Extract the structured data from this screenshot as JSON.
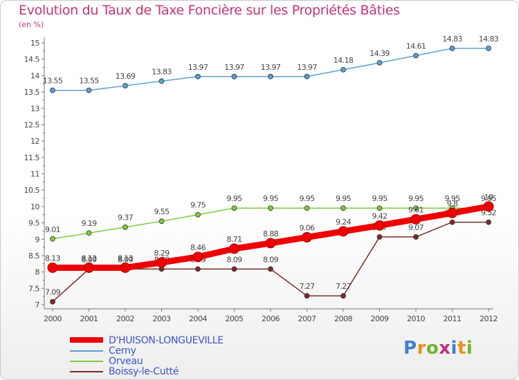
{
  "title": "Evolution du Taux de Taxe Foncière sur les Propriétés Bâties",
  "unit": "(en %)",
  "brand": {
    "letters": [
      "P",
      "r",
      "o",
      "x",
      "i",
      "t",
      "i"
    ],
    "colors": [
      "#3f7fd0",
      "#f08c1e",
      "#73b42b",
      "#c0347a",
      "#3f7fd0",
      "#f08c1e",
      "#73b42b"
    ]
  },
  "chart_data": {
    "type": "line",
    "title": "Evolution du Taux de Taxe Foncière sur les Propriétés Bâties",
    "ylabel": "(en %)",
    "xlabel": "",
    "x": [
      "2000",
      "2001",
      "2002",
      "2003",
      "2004",
      "2005",
      "2006",
      "2007",
      "2008",
      "2009",
      "2010",
      "2011",
      "2012"
    ],
    "ylim": [
      7,
      15
    ],
    "yticks": [
      "7",
      "7.5",
      "8",
      "8.5",
      "9",
      "9.5",
      "10",
      "10.5",
      "11",
      "11.5",
      "12",
      "12.5",
      "13",
      "13.5",
      "14",
      "14.5",
      "15"
    ],
    "series": [
      {
        "name": "Cerny",
        "color": "#5a9fd4",
        "values": [
          13.55,
          13.55,
          13.69,
          13.83,
          13.97,
          13.97,
          13.97,
          13.97,
          14.18,
          14.39,
          14.61,
          14.83,
          14.83
        ],
        "labels": [
          "13.55",
          "13.55",
          "13.69",
          "13.83",
          "13.97",
          "13.97",
          "13.97",
          "13.97",
          "14.18",
          "14.39",
          "14.61",
          "14.83",
          "14.83"
        ]
      },
      {
        "name": "Orveau",
        "color": "#7ccb3c",
        "values": [
          9.01,
          9.19,
          9.37,
          9.55,
          9.75,
          9.95,
          9.95,
          9.95,
          9.95,
          9.95,
          9.95,
          9.95,
          9.95
        ],
        "labels": [
          "9.01",
          "9.19",
          "9.37",
          "9.55",
          "9.75",
          "9.95",
          "9.95",
          "9.95",
          "9.95",
          "9.95",
          "9.95",
          "9.95",
          "9.95"
        ]
      },
      {
        "name": "Boissy-le-Cutté",
        "color": "#7b2a2a",
        "values": [
          7.09,
          8.09,
          8.09,
          8.09,
          8.09,
          8.09,
          8.09,
          7.27,
          7.27,
          9.07,
          9.07,
          9.52,
          9.52
        ],
        "labels": [
          "7.09",
          "8.09",
          "8.09",
          "8.09",
          "8.09",
          "8.09",
          "8.09",
          "7.27",
          "7.27",
          "9.07",
          "9.07",
          "9.52",
          "9.52"
        ]
      },
      {
        "name": "D'HUISON-LONGUEVILLE",
        "color": "#ee0000",
        "values": [
          8.13,
          8.13,
          8.13,
          8.29,
          8.46,
          8.71,
          8.88,
          9.06,
          9.24,
          9.42,
          9.61,
          9.8,
          10
        ],
        "labels": [
          "8.13",
          "8.13",
          "8.13",
          "8.29",
          "8.46",
          "8.71",
          "8.88",
          "9.06",
          "9.24",
          "9.42",
          "9.61",
          "9.8",
          "10"
        ]
      }
    ],
    "legend": [
      "D'HUISON-LONGUEVILLE",
      "Cerny",
      "Orveau",
      "Boissy-le-Cutté"
    ],
    "grid": false,
    "legend_position": "bottom-left"
  }
}
